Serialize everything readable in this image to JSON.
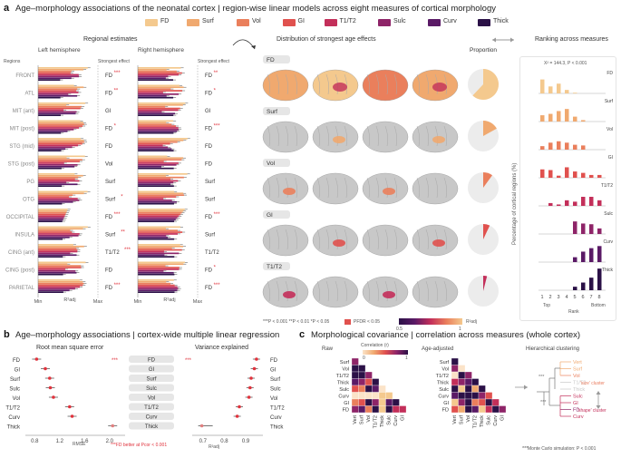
{
  "panel_a": {
    "letter": "a",
    "title": "Age–morphology associations of the neonatal cortex | region-wise linear models across eight measures of cortical morphology",
    "legend": [
      {
        "label": "FD",
        "color": "#f4c98e"
      },
      {
        "label": "Surf",
        "color": "#f0a96f"
      },
      {
        "label": "Vol",
        "color": "#ea7f5c"
      },
      {
        "label": "GI",
        "color": "#e0514e"
      },
      {
        "label": "T1/T2",
        "color": "#c32f5a"
      },
      {
        "label": "Sulc",
        "color": "#8e2468"
      },
      {
        "label": "Curv",
        "color": "#5a1a66"
      },
      {
        "label": "Thick",
        "color": "#2b1147"
      }
    ],
    "regional_estimates_title": "Regional estimates",
    "left_hemisphere": "Left hemisphere",
    "right_hemisphere": "Right hemisphere",
    "strongest_effect": "Strongest effect",
    "regions_label": "Regions",
    "regions": [
      "FRONT",
      "ATL",
      "MIT (ant)",
      "MIT (post)",
      "STG (mid)",
      "STG (post)",
      "PG",
      "OTG",
      "OCCIPITAL",
      "INSULA",
      "CING (ant)",
      "CING (post)",
      "PARIETAL"
    ],
    "left_effects": [
      {
        "label": "FD",
        "stars": "***"
      },
      {
        "label": "FD",
        "stars": "**"
      },
      {
        "label": "GI",
        "stars": ""
      },
      {
        "label": "FD",
        "stars": "*"
      },
      {
        "label": "FD",
        "stars": ""
      },
      {
        "label": "Vol",
        "stars": ""
      },
      {
        "label": "Surf",
        "stars": ""
      },
      {
        "label": "Surf",
        "stars": "*"
      },
      {
        "label": "FD",
        "stars": "***"
      },
      {
        "label": "Surf",
        "stars": "**"
      },
      {
        "label": "T1/T2",
        "stars": "***"
      },
      {
        "label": "FD",
        "stars": ""
      },
      {
        "label": "FD",
        "stars": "***"
      }
    ],
    "right_effects": [
      {
        "label": "FD",
        "stars": "**"
      },
      {
        "label": "FD",
        "stars": "*"
      },
      {
        "label": "GI",
        "stars": ""
      },
      {
        "label": "FD",
        "stars": "***"
      },
      {
        "label": "FD",
        "stars": ""
      },
      {
        "label": "FD",
        "stars": ""
      },
      {
        "label": "Surf",
        "stars": ""
      },
      {
        "label": "Surf",
        "stars": ""
      },
      {
        "label": "FD",
        "stars": "***"
      },
      {
        "label": "Surf",
        "stars": ""
      },
      {
        "label": "T1/T2",
        "stars": ""
      },
      {
        "label": "FD",
        "stars": "*"
      },
      {
        "label": "FD",
        "stars": "***"
      }
    ],
    "axis_min": "Min",
    "axis_max": "Max",
    "axis_zero": "0",
    "axis_one": "1",
    "axis_r2": "R²adj",
    "distribution_title": "Distribution of strongest age effects",
    "proportion_title": "Proportion",
    "brain_rows": [
      "FD",
      "Surf",
      "Vol",
      "GI",
      "T1/T2"
    ],
    "proportions": [
      0.62,
      0.17,
      0.1,
      0.07,
      0.04
    ],
    "sig_legend": "***P < 0.001   **P < 0.01   *P < 0.05",
    "pfdr_legend": "PFDR < 0.05",
    "cbar_min": "0.5",
    "cbar_max": "1",
    "cbar_label": "R²adj",
    "ranking_title": "Ranking across measures",
    "chi_text": "X² = 144.3, P < 0.001",
    "ranking_ylabel": "Percentage of cortical regions (%)",
    "rank_xlabel": "Rank",
    "rank_top": "Top",
    "rank_bottom": "Bottom",
    "rank_ticks": [
      "1",
      "2",
      "3",
      "4",
      "5",
      "6",
      "7",
      "8"
    ]
  },
  "panel_b": {
    "letter": "b",
    "title": "Age–morphology associations | cortex-wide multiple linear regression",
    "rmse_title": "Root mean square error",
    "var_title": "Variance explained",
    "rmse_xlabel": "RMSE",
    "r2_xlabel": "R²adj",
    "footnote": "***FD better at Pcor < 0.001",
    "stars": "***"
  },
  "panel_c": {
    "letter": "c",
    "title": "Morphological covariance | correlation across measures (whole cortex)",
    "raw_title": "Raw",
    "adjusted_title": "Age-adjusted",
    "corr_title": "Correlation (r)",
    "corr_min": "0",
    "corr_max": "1",
    "cluster_title": "Hierarchical clustering",
    "size_cluster": "'size' cluster",
    "shape_cluster": "'shape' cluster",
    "monte_carlo": "Monte Carlo simulation: P < 0.001",
    "mc_stars": "***",
    "rows": [
      "Surf",
      "Vol",
      "T1/T2",
      "Thick",
      "Sulc",
      "Curv",
      "GI",
      "FD"
    ],
    "cols": [
      "Vert",
      "Surf",
      "Vol",
      "T1/T2",
      "Thick",
      "Sulc",
      "Curv",
      "GI"
    ],
    "dendro_leaves": [
      "Vert",
      "Surf",
      "Vol",
      "T1/T2",
      "Thick",
      "Sulc",
      "GI",
      "FD",
      "Curv"
    ]
  },
  "chart_data": [
    {
      "type": "bar",
      "title": "Ranking across measures",
      "categories": [
        "1",
        "2",
        "3",
        "4",
        "5",
        "6",
        "7",
        "8"
      ],
      "xlabel": "Rank",
      "ylabel": "Percentage of cortical regions (%)",
      "series": [
        {
          "name": "FD",
          "values": [
            40,
            20,
            28,
            10,
            2,
            0,
            0,
            0
          ]
        },
        {
          "name": "Surf",
          "values": [
            18,
            22,
            30,
            36,
            14,
            4,
            0,
            0
          ]
        },
        {
          "name": "Vol",
          "values": [
            10,
            20,
            24,
            20,
            14,
            12,
            0,
            0
          ]
        },
        {
          "name": "GI",
          "values": [
            24,
            22,
            6,
            30,
            18,
            14,
            8,
            8
          ]
        },
        {
          "name": "T1/T2",
          "values": [
            0,
            8,
            4,
            16,
            12,
            26,
            26,
            16
          ]
        },
        {
          "name": "Sulc",
          "values": [
            0,
            0,
            0,
            0,
            36,
            30,
            28,
            16
          ]
        },
        {
          "name": "Curv",
          "values": [
            0,
            0,
            0,
            0,
            14,
            30,
            40,
            46
          ]
        },
        {
          "name": "Thick",
          "values": [
            0,
            0,
            0,
            0,
            10,
            22,
            36,
            62
          ]
        }
      ]
    },
    {
      "type": "scatter",
      "title": "Root mean square error",
      "categories": [
        "FD",
        "GI",
        "Surf",
        "Sulc",
        "Vol",
        "T1/T2",
        "Curv",
        "Thick"
      ],
      "values": [
        0.83,
        0.97,
        1.04,
        1.05,
        1.1,
        1.36,
        1.4,
        2.05
      ],
      "xlabel": "RMSE",
      "xticks": [
        "0.8",
        "1.2",
        "1.6",
        "2.0"
      ],
      "xlim": [
        0.65,
        2.25
      ]
    },
    {
      "type": "scatter",
      "title": "Variance explained",
      "categories": [
        "FD",
        "GI",
        "Surf",
        "Sulc",
        "Vol",
        "T1/T2",
        "Curv",
        "Thick"
      ],
      "values": [
        0.95,
        0.94,
        0.925,
        0.92,
        0.915,
        0.87,
        0.86,
        0.695
      ],
      "xlabel": "R²adj",
      "xticks": [
        "0.7",
        "0.8",
        "0.9"
      ],
      "xlim": [
        0.65,
        0.98
      ]
    }
  ]
}
